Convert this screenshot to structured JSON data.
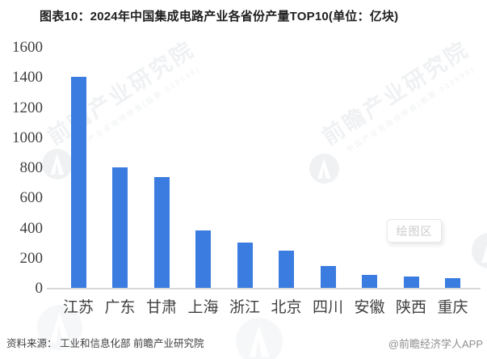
{
  "title": "图表10：2024年中国集成电路产业各省份产量TOP10(单位：亿块)",
  "chart_data": {
    "type": "bar",
    "title": "2024年中国集成电路产业各省份产量TOP10",
    "unit": "亿块",
    "categories": [
      "江苏",
      "广东",
      "甘肃",
      "上海",
      "浙江",
      "北京",
      "四川",
      "安徽",
      "陕西",
      "重庆"
    ],
    "values": [
      1405,
      805,
      740,
      385,
      305,
      255,
      150,
      90,
      80,
      72
    ],
    "xlabel": "",
    "ylabel": "",
    "ylim": [
      0,
      1600
    ],
    "ytick_step": 200,
    "yticks": [
      0,
      200,
      400,
      600,
      800,
      1000,
      1200,
      1400,
      1600
    ],
    "grid": false,
    "legend": "none",
    "bar_color": "#3a7cdf"
  },
  "plot_area_tooltip": "绘图区",
  "watermark": {
    "main": "前瞻产业研究院",
    "sub": "中国产业咨询领导者(股票:839599)"
  },
  "footer": {
    "source": "资料来源： 工业和信息化部 前瞻产业研究院",
    "credit": "@前瞻经济学人APP"
  },
  "colors": {
    "bar": "#3a7cdf",
    "axis_line": "#d9d9d9",
    "tick_label": "#3f3f3f",
    "title_text": "#1f1f1f",
    "source_text": "#3f3f3f",
    "credit_text": "#8f8f8f",
    "tooltip_text": "#cbcbcb",
    "watermark": "#eff1f3"
  }
}
